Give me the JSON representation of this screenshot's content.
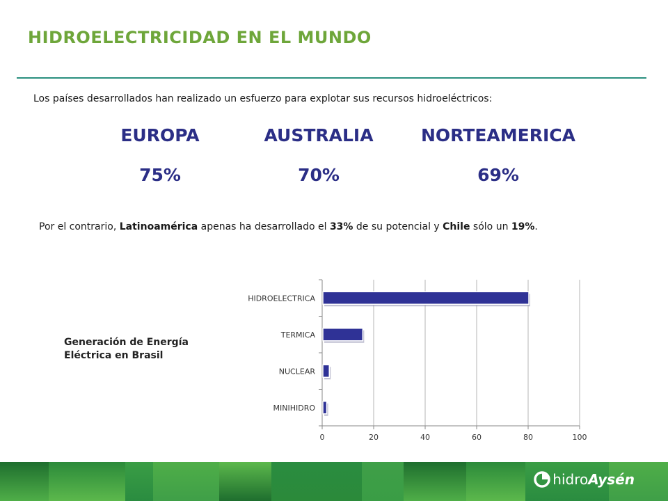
{
  "header": {
    "title": "HIDROELECTRICIDAD EN EL MUNDO",
    "title_color": "#6ea63a",
    "rule_color": "#2a8f7e"
  },
  "intro": "Los países desarrollados han realizado un esfuerzo para explotar sus recursos hidroeléctricos:",
  "regions": [
    {
      "name": "EUROPA",
      "percent": "75%"
    },
    {
      "name": "AUSTRALIA",
      "percent": "70%"
    },
    {
      "name": "NORTEAMERICA",
      "percent": "69%"
    }
  ],
  "region_color": "#2b2e86",
  "contrast": {
    "p1": "Por el contrario, ",
    "b1": "Latinoamérica",
    "p2": " apenas ha desarrollado el ",
    "b2": "33%",
    "p3": " de su potencial y ",
    "b3": "Chile",
    "p4": " sólo un ",
    "b4": "19%",
    "p5": "."
  },
  "chart_caption": {
    "line1": "Generación de Energía",
    "line2": "Eléctrica en Brasil"
  },
  "chart_data": {
    "type": "bar",
    "orientation": "horizontal",
    "categories": [
      "HIDROELECTRICA",
      "TERMICA",
      "NUCLEAR",
      "MINIHIDRO"
    ],
    "values": [
      80,
      15.5,
      2.5,
      1.5
    ],
    "xlim": [
      0,
      100
    ],
    "xticks": [
      "0",
      "20",
      "40",
      "60",
      "80",
      "100"
    ],
    "grid": true,
    "bar_color": "#2f3296"
  },
  "logo": {
    "prefix": "hidro",
    "suffix": "Aysén"
  },
  "footer_colors": [
    "#1e6e2e",
    "#2b8a3a",
    "#3a9d45",
    "#4fae48",
    "#5cb84c",
    "#2a8c40",
    "#3f9f48"
  ]
}
